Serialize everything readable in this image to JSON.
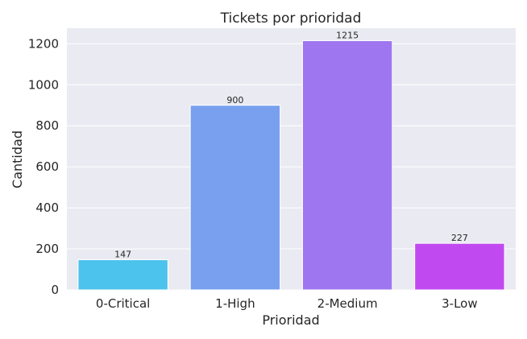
{
  "chart_data": {
    "type": "bar",
    "title": "Tickets por prioridad",
    "xlabel": "Prioridad",
    "ylabel": "Cantidad",
    "categories": [
      "0-Critical",
      "1-High",
      "2-Medium",
      "3-Low"
    ],
    "values": [
      147,
      900,
      1215,
      227
    ],
    "data_labels": [
      "147",
      "900",
      "1215",
      "227"
    ],
    "ylim": [
      0,
      1276
    ],
    "yticks": [
      0,
      200,
      400,
      600,
      800,
      1000,
      1200
    ],
    "ytick_labels": [
      "0",
      "200",
      "400",
      "600",
      "800",
      "1000",
      "1200"
    ],
    "grid": true,
    "legend": "none",
    "colors": [
      "#4cc3ec",
      "#78a0ef",
      "#9e76ef",
      "#c04af0"
    ],
    "background": "#eaeaf2",
    "gridline_color": "#ffffff"
  }
}
